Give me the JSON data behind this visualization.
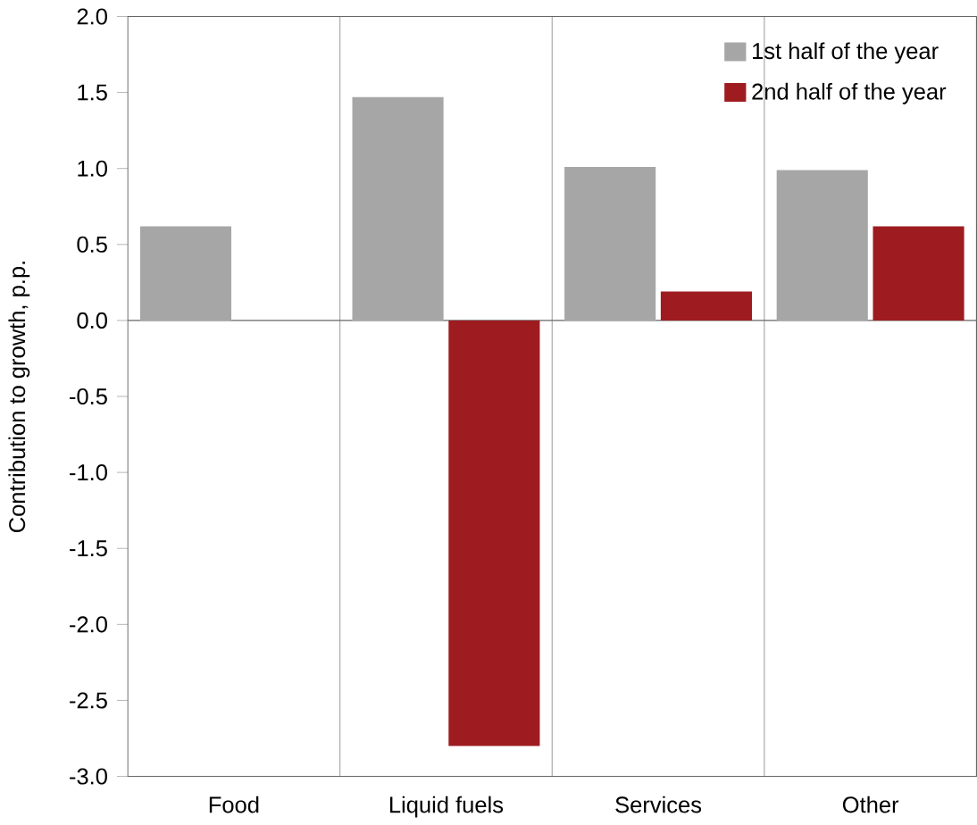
{
  "chart_data": {
    "type": "bar",
    "ylabel": "Contribution to growth, p.p.",
    "categories": [
      "Food",
      "Liquid fuels",
      "Services",
      "Other"
    ],
    "series": [
      {
        "name": "1st half of the year",
        "color": "#a6a6a6",
        "values": [
          0.62,
          1.47,
          1.01,
          0.99
        ]
      },
      {
        "name": "2nd half of the year",
        "color": "#9e1b20",
        "values": [
          0,
          -2.8,
          0.19,
          0.62
        ]
      }
    ],
    "ylim": [
      -3,
      2
    ],
    "yticks": [
      {
        "value": 2,
        "label": "2.0"
      },
      {
        "value": 1.5,
        "label": "1.5"
      },
      {
        "value": 1,
        "label": "1.0"
      },
      {
        "value": 0.5,
        "label": "0.5"
      },
      {
        "value": 0,
        "label": "0.0"
      },
      {
        "value": -0.5,
        "label": "-0.5"
      },
      {
        "value": -1,
        "label": "-1.0"
      },
      {
        "value": -1.5,
        "label": "-1.5"
      },
      {
        "value": -2,
        "label": "-2.0"
      },
      {
        "value": -2.5,
        "label": "-2.5"
      },
      {
        "value": -3,
        "label": "-3.0"
      }
    ],
    "grid": "x",
    "legend": "top right"
  }
}
